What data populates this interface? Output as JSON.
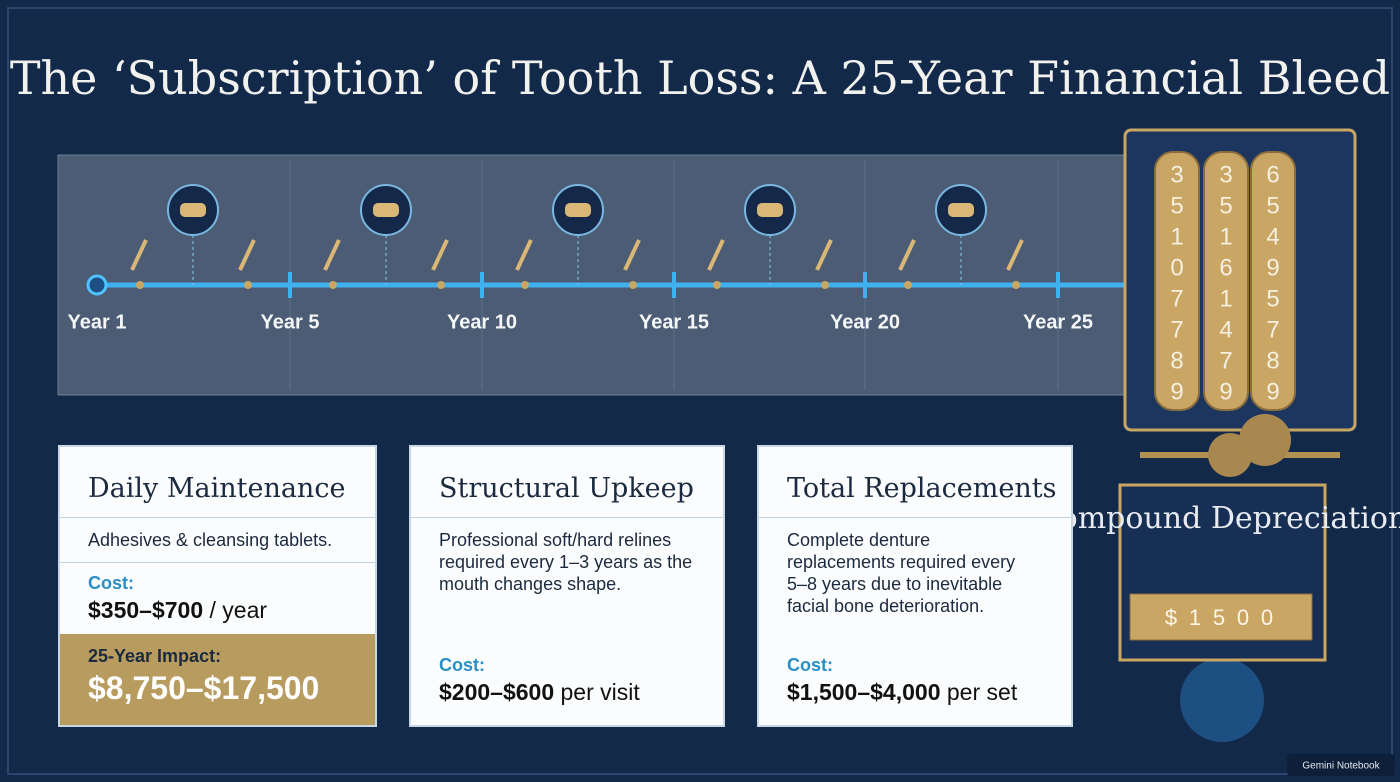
{
  "header": {
    "title": "The ‘Subscription’ of Tooth Loss: A 25-Year Financial Bleed"
  },
  "timeline": {
    "labels": [
      "Year 1",
      "Year 5",
      "Year 10",
      "Year 15",
      "Year 20",
      "Year 25"
    ]
  },
  "counter": {
    "wheels": [
      [
        "3",
        "5",
        "1",
        "0",
        "7",
        "7",
        "8",
        "9"
      ],
      [
        "3",
        "5",
        "1",
        "6",
        "1",
        "4",
        "7",
        "9"
      ],
      [
        "6",
        "5",
        "4",
        "9",
        "5",
        "7",
        "8",
        "9"
      ]
    ],
    "title": "Compound Depreciation",
    "display": [
      "$",
      "1",
      "5",
      "0",
      "0"
    ]
  },
  "cards": [
    {
      "title": "Daily Maintenance",
      "description": "Adhesives & cleansing tablets.",
      "cost_label": "Cost:",
      "cost": "$350–$700",
      "cost_unit": "/ year",
      "impact_label": "25-Year Impact:",
      "impact": "$8,750–$17,500"
    },
    {
      "title": "Structural Upkeep",
      "description": "Professional soft/hard relines required every 1–3 years as the mouth changes shape.",
      "cost_label": "Cost:",
      "cost": "$200–$600",
      "cost_unit": "per visit"
    },
    {
      "title": "Total Replacements",
      "description": "Complete denture replacements required every 5–8 years due to inevitable facial bone deterioration.",
      "cost_label": "Cost:",
      "cost": "$1,500–$4,000",
      "cost_unit": "per set"
    }
  ],
  "footer": {
    "watermark": "Gemini Notebook"
  }
}
